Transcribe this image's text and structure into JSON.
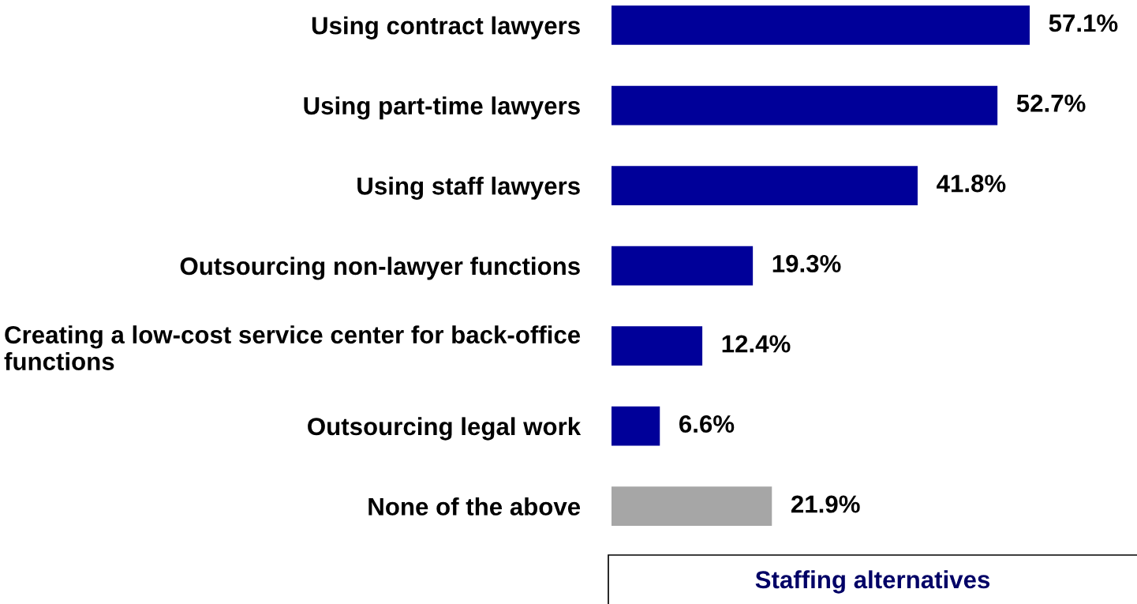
{
  "chart_data": {
    "type": "bar",
    "orientation": "horizontal",
    "title": "Staffing alternatives",
    "categories": [
      "Using contract lawyers",
      "Using part-time lawyers",
      "Using staff lawyers",
      "Outsourcing non-lawyer functions",
      "Creating a low-cost service center for back-office\nfunctions",
      "Outsourcing legal work",
      "None of the above"
    ],
    "values": [
      57.1,
      52.7,
      41.8,
      19.3,
      12.4,
      6.6,
      21.9
    ],
    "colors": [
      "#000099",
      "#000099",
      "#000099",
      "#000099",
      "#000099",
      "#000099",
      "#a6a6a6"
    ],
    "value_labels": [
      "57.1%",
      "52.7%",
      "41.8%",
      "19.3%",
      "12.4%",
      "6.6%",
      "21.9%"
    ],
    "tick_labels": "y",
    "grid": false,
    "legend": false
  }
}
